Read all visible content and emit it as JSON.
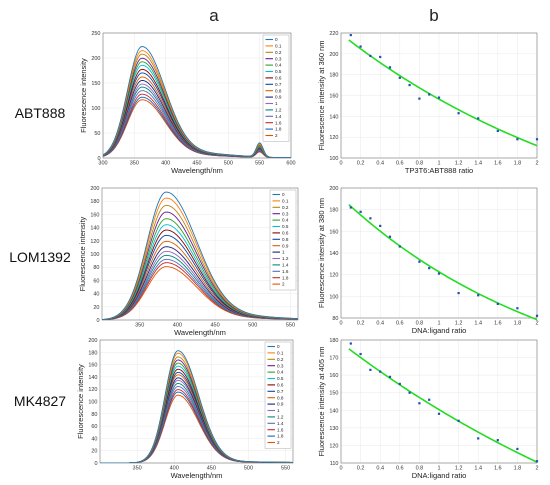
{
  "figure": {
    "column_labels": [
      "a",
      "b"
    ],
    "row_labels": [
      "ABT888",
      "LOM1392",
      "MK4827"
    ]
  },
  "chart_data": [
    {
      "id": "a1",
      "type": "line",
      "xlabel": "Wavelength/nm",
      "ylabel": "Fluorescence intensity",
      "xlim": [
        300,
        600
      ],
      "ylim": [
        0,
        250
      ],
      "xticks": [
        300,
        350,
        400,
        450,
        500,
        550,
        600
      ],
      "yticks": [
        0,
        50,
        100,
        150,
        200,
        250
      ],
      "grid": true,
      "legend": "top-right",
      "series_names": [
        "0",
        "0.1",
        "0.2",
        "0.3",
        "0.4",
        "0.5",
        "0.6",
        "0.7",
        "0.8",
        "0.9",
        "1",
        "1.2",
        "1.4",
        "1.6",
        "1.8",
        "2"
      ],
      "colors": [
        "#1f77b4",
        "#ff7f0e",
        "#b8860b",
        "#6a1b9a",
        "#2ca02c",
        "#00bcd4",
        "#8b0000",
        "#0d47a1",
        "#d95f02",
        "#1a237e",
        "#9467bd",
        "#00897b",
        "#5c6bc0",
        "#c62828",
        "#1565c0",
        "#e65100"
      ],
      "peak_x": 362,
      "peaks": [
        220,
        212,
        205,
        197,
        190,
        183,
        175,
        168,
        160,
        153,
        146,
        140,
        133,
        126,
        120,
        115
      ],
      "width": 32,
      "tail": 0.04,
      "secondary_peak": {
        "x": 550,
        "values": [
          28,
          26,
          24,
          23,
          21,
          20,
          19,
          18,
          17,
          16,
          15,
          14,
          13,
          12,
          12,
          11
        ]
      }
    },
    {
      "id": "b1",
      "type": "scatter",
      "xlabel": "TP3T6:ABT888 ratio",
      "ylabel": "Fluorescence intensity at 360 nm",
      "xlim": [
        0,
        2
      ],
      "ylim": [
        100,
        220
      ],
      "xticks": [
        0,
        0.2,
        0.4,
        0.6,
        0.8,
        1,
        1.2,
        1.4,
        1.6,
        1.8,
        2
      ],
      "yticks": [
        100,
        120,
        140,
        160,
        180,
        200,
        220
      ],
      "grid": true,
      "fit": "exponential",
      "x": [
        0.1,
        0.2,
        0.3,
        0.4,
        0.5,
        0.6,
        0.7,
        0.8,
        0.9,
        1.0,
        1.2,
        1.4,
        1.6,
        1.8,
        2.0
      ],
      "y": [
        218,
        207,
        198,
        197,
        187,
        177,
        170,
        157,
        161,
        158,
        143,
        138,
        126,
        118,
        118
      ]
    },
    {
      "id": "a2",
      "type": "line",
      "xlabel": "Wavelength/nm",
      "ylabel": "Fluorescence intensity",
      "xlim": [
        300,
        560
      ],
      "ylim": [
        0,
        200
      ],
      "xticks": [
        350,
        400,
        450,
        500,
        550
      ],
      "yticks": [
        0,
        20,
        40,
        60,
        80,
        100,
        120,
        140,
        160,
        180,
        200
      ],
      "grid": true,
      "legend": "top-right",
      "series_names": [
        "0",
        "0.1",
        "0.2",
        "0.3",
        "0.4",
        "0.5",
        "0.6",
        "0.8",
        "0.9",
        "1",
        "1.2",
        "1.4",
        "1.6",
        "1.8",
        "2"
      ],
      "colors": [
        "#1f77b4",
        "#ff7f0e",
        "#b8860b",
        "#6a1b9a",
        "#2ca02c",
        "#00bcd4",
        "#8b0000",
        "#0d47a1",
        "#d95f02",
        "#1a237e",
        "#9467bd",
        "#00897b",
        "#5c6bc0",
        "#c62828",
        "#e65100"
      ],
      "peak_x": 385,
      "peaks": [
        192,
        183,
        172,
        162,
        152,
        143,
        135,
        127,
        118,
        110,
        103,
        97,
        91,
        86,
        80
      ],
      "width": 35,
      "tail": 0.03
    },
    {
      "id": "b2",
      "type": "scatter",
      "xlabel": "DNA:ligand ratio",
      "ylabel": "Fluorescence intensity at 380 nm",
      "xlim": [
        0,
        2
      ],
      "ylim": [
        80,
        200
      ],
      "xticks": [
        0,
        0.2,
        0.4,
        0.6,
        0.8,
        1,
        1.2,
        1.4,
        1.6,
        1.8,
        2
      ],
      "yticks": [
        80,
        100,
        120,
        140,
        160,
        180,
        200
      ],
      "grid": true,
      "fit": "exponential",
      "x": [
        0.1,
        0.2,
        0.3,
        0.4,
        0.5,
        0.6,
        0.8,
        0.9,
        1.0,
        1.2,
        1.4,
        1.6,
        1.8,
        2.0
      ],
      "y": [
        182,
        178,
        172,
        165,
        155,
        146,
        132,
        126,
        121,
        103,
        101,
        93,
        89,
        82
      ]
    },
    {
      "id": "a3",
      "type": "line",
      "xlabel": "Wavelength/nm",
      "ylabel": "Fluorescence intensity",
      "xlim": [
        300,
        560
      ],
      "ylim": [
        0,
        200
      ],
      "xticks": [
        350,
        400,
        450,
        500,
        550
      ],
      "yticks": [
        0,
        20,
        40,
        60,
        80,
        100,
        120,
        140,
        160,
        180,
        200
      ],
      "grid": true,
      "legend": "top-right",
      "series_names": [
        "0",
        "0.1",
        "0.2",
        "0.3",
        "0.4",
        "0.5",
        "0.6",
        "0.7",
        "0.8",
        "0.9",
        "1",
        "1.2",
        "1.4",
        "1.6",
        "1.8",
        "2"
      ],
      "colors": [
        "#1f77b4",
        "#ff7f0e",
        "#b8860b",
        "#6a1b9a",
        "#2ca02c",
        "#00bcd4",
        "#8b0000",
        "#0d47a1",
        "#d95f02",
        "#1a237e",
        "#9467bd",
        "#00897b",
        "#5c6bc0",
        "#c62828",
        "#1565c0",
        "#e65100"
      ],
      "peak_x": 405,
      "peaks": [
        182,
        178,
        172,
        167,
        162,
        157,
        152,
        147,
        143,
        138,
        134,
        129,
        124,
        119,
        115,
        110
      ],
      "width": 24,
      "tail": 0.01
    },
    {
      "id": "b3",
      "type": "scatter",
      "xlabel": "DNA:ligand ratio",
      "ylabel": "Fluorescence intensity at 405 nm",
      "xlim": [
        0,
        2
      ],
      "ylim": [
        110,
        180
      ],
      "xticks": [
        0,
        0.2,
        0.4,
        0.6,
        0.8,
        1,
        1.2,
        1.4,
        1.6,
        1.8,
        2
      ],
      "yticks": [
        110,
        120,
        130,
        140,
        150,
        160,
        170,
        180
      ],
      "grid": true,
      "fit": "exponential",
      "x": [
        0.1,
        0.2,
        0.3,
        0.4,
        0.5,
        0.6,
        0.7,
        0.8,
        0.9,
        1.0,
        1.2,
        1.4,
        1.6,
        1.8,
        2.0
      ],
      "y": [
        178,
        172,
        163,
        162,
        159,
        155,
        150,
        144,
        146,
        138,
        134,
        124,
        123,
        118,
        111
      ]
    }
  ]
}
